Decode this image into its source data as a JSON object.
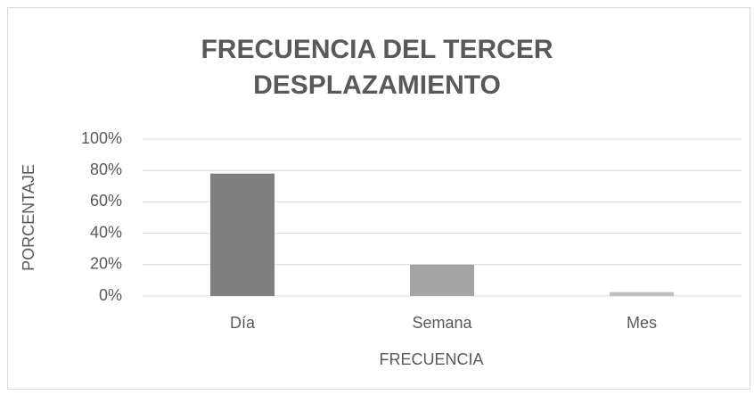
{
  "chart_data": {
    "type": "bar",
    "title": "FRECUENCIA DEL TERCER DESPLAZAMIENTO",
    "xlabel": "FRECUENCIA",
    "ylabel": "PORCENTAJE",
    "categories": [
      "Día",
      "Semana",
      "Mes"
    ],
    "values": [
      78,
      20,
      2.5
    ],
    "colors": [
      "#7f7f7f",
      "#a5a5a5",
      "#bfbfbf"
    ],
    "ylim": [
      0,
      100
    ],
    "yticks": [
      {
        "value": 0,
        "label": "0%"
      },
      {
        "value": 20,
        "label": "20%"
      },
      {
        "value": 40,
        "label": "40%"
      },
      {
        "value": 60,
        "label": "60%"
      },
      {
        "value": 80,
        "label": "80%"
      },
      {
        "value": 100,
        "label": "100%"
      }
    ],
    "grid": true
  }
}
